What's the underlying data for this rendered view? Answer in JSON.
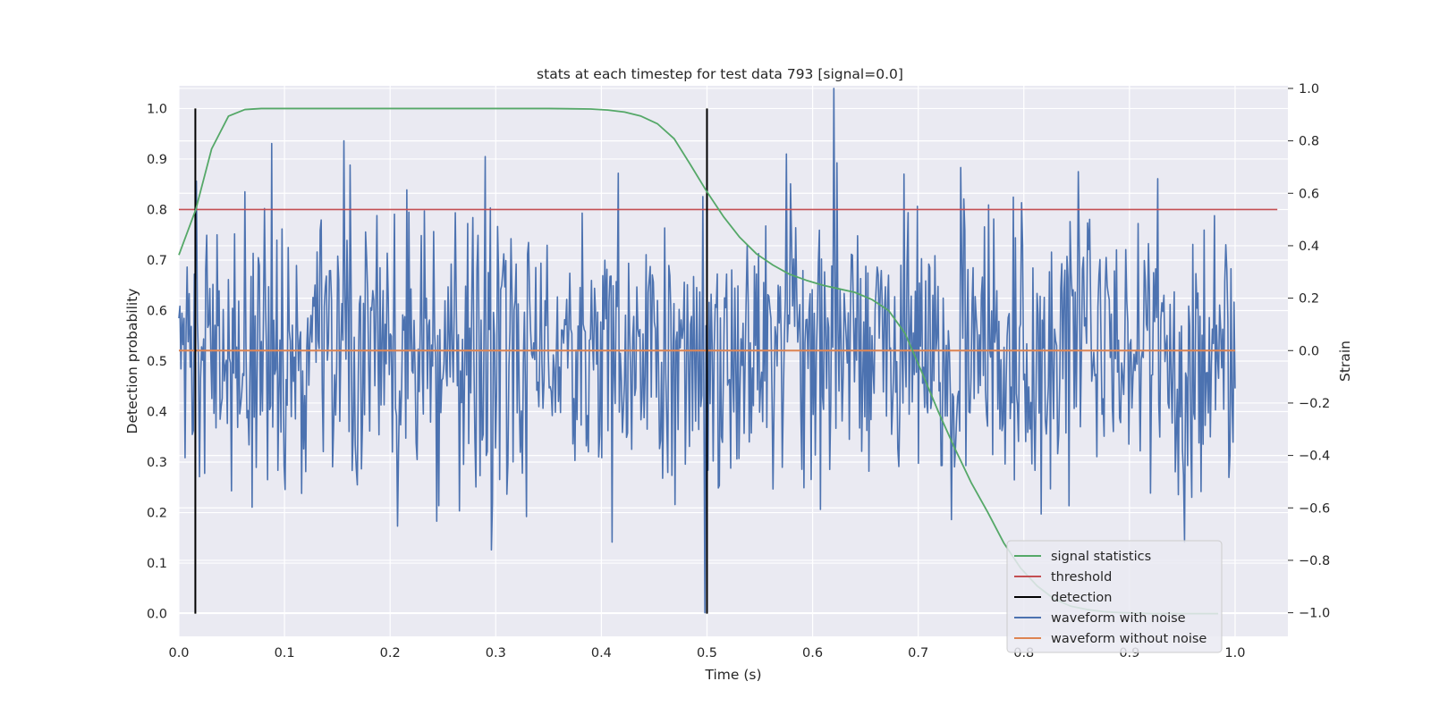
{
  "chart_data": {
    "type": "line",
    "title": "stats at each timestep for test data 793 [signal=0.0]",
    "xlabel": "Time (s)",
    "ylabel_left": "Detection probability",
    "ylabel_right": "Strain",
    "xlim": [
      0.0,
      1.05
    ],
    "ylim_left": [
      -0.045,
      1.045
    ],
    "ylim_right": [
      -1.09,
      1.01
    ],
    "x_ticks": [
      "0.0",
      "0.1",
      "0.2",
      "0.3",
      "0.4",
      "0.5",
      "0.6",
      "0.7",
      "0.8",
      "0.9",
      "1.0"
    ],
    "y_left_ticks": [
      "0.0",
      "0.1",
      "0.2",
      "0.3",
      "0.4",
      "0.5",
      "0.6",
      "0.7",
      "0.8",
      "0.9",
      "1.0"
    ],
    "y_right_ticks": [
      "−1.0",
      "−0.8",
      "−0.6",
      "−0.4",
      "−0.2",
      "0.0",
      "0.2",
      "0.4",
      "0.6",
      "0.8",
      "1.0"
    ],
    "grid": true,
    "legend_position": "lower-right",
    "colors": {
      "signal_statistics": "#55a868",
      "threshold": "#c44e52",
      "detection": "#000000",
      "waveform_with_noise": "#4c72b0",
      "waveform_without_noise": "#dd8452",
      "plot_background": "#eaeaf2",
      "grid": "#ffffff"
    },
    "series": [
      {
        "name": "signal statistics",
        "axis": "left",
        "x": [
          0.0,
          0.016,
          0.031,
          0.047,
          0.0625,
          0.078,
          0.1,
          0.15,
          0.2,
          0.25,
          0.3,
          0.35,
          0.39,
          0.406,
          0.422,
          0.4375,
          0.453,
          0.469,
          0.484,
          0.5,
          0.516,
          0.531,
          0.547,
          0.5625,
          0.578,
          0.594,
          0.61,
          0.625,
          0.64,
          0.656,
          0.672,
          0.6875,
          0.703,
          0.719,
          0.734,
          0.75,
          0.766,
          0.781,
          0.797,
          0.8125,
          0.828,
          0.844,
          0.86,
          0.875,
          0.89,
          0.906,
          0.922,
          0.9375,
          0.953,
          0.969,
          0.984
        ],
        "y": [
          0.71,
          0.8,
          0.92,
          0.985,
          0.998,
          1.0,
          1.0,
          1.0,
          1.0,
          1.0,
          1.0,
          1.0,
          0.999,
          0.997,
          0.993,
          0.985,
          0.97,
          0.94,
          0.89,
          0.835,
          0.785,
          0.745,
          0.712,
          0.69,
          0.672,
          0.66,
          0.65,
          0.643,
          0.636,
          0.622,
          0.6,
          0.555,
          0.48,
          0.4,
          0.33,
          0.26,
          0.2,
          0.14,
          0.09,
          0.055,
          0.03,
          0.015,
          0.008,
          0.004,
          0.002,
          0.001,
          0.0,
          0.0,
          0.0,
          0.0,
          0.0
        ]
      },
      {
        "name": "threshold",
        "axis": "left",
        "x": [
          0.0,
          1.04
        ],
        "y": [
          0.8,
          0.8
        ]
      },
      {
        "name": "detection",
        "axis": "left",
        "x": [
          0.0156,
          0.5
        ],
        "y_range": [
          0.0,
          1.0
        ]
      },
      {
        "name": "waveform with noise",
        "axis": "right",
        "x_range": [
          0.0,
          1.0
        ],
        "y_range": [
          -1.0,
          1.0
        ],
        "peaks": [
          {
            "x": 0.088,
            "y": 0.79
          },
          {
            "x": 0.156,
            "y": 0.8
          },
          {
            "x": 0.29,
            "y": 0.74
          },
          {
            "x": 0.498,
            "y": -1.0
          },
          {
            "x": 0.62,
            "y": 1.0
          },
          {
            "x": 0.575,
            "y": 0.75
          },
          {
            "x": 0.296,
            "y": -0.76
          },
          {
            "x": 0.952,
            "y": -0.73
          }
        ]
      },
      {
        "name": "waveform without noise",
        "axis": "right",
        "x": [
          0.0,
          1.0
        ],
        "y": [
          0.0,
          0.0
        ]
      }
    ],
    "legend": [
      "signal statistics",
      "threshold",
      "detection",
      "waveform with noise",
      "waveform without noise"
    ]
  }
}
